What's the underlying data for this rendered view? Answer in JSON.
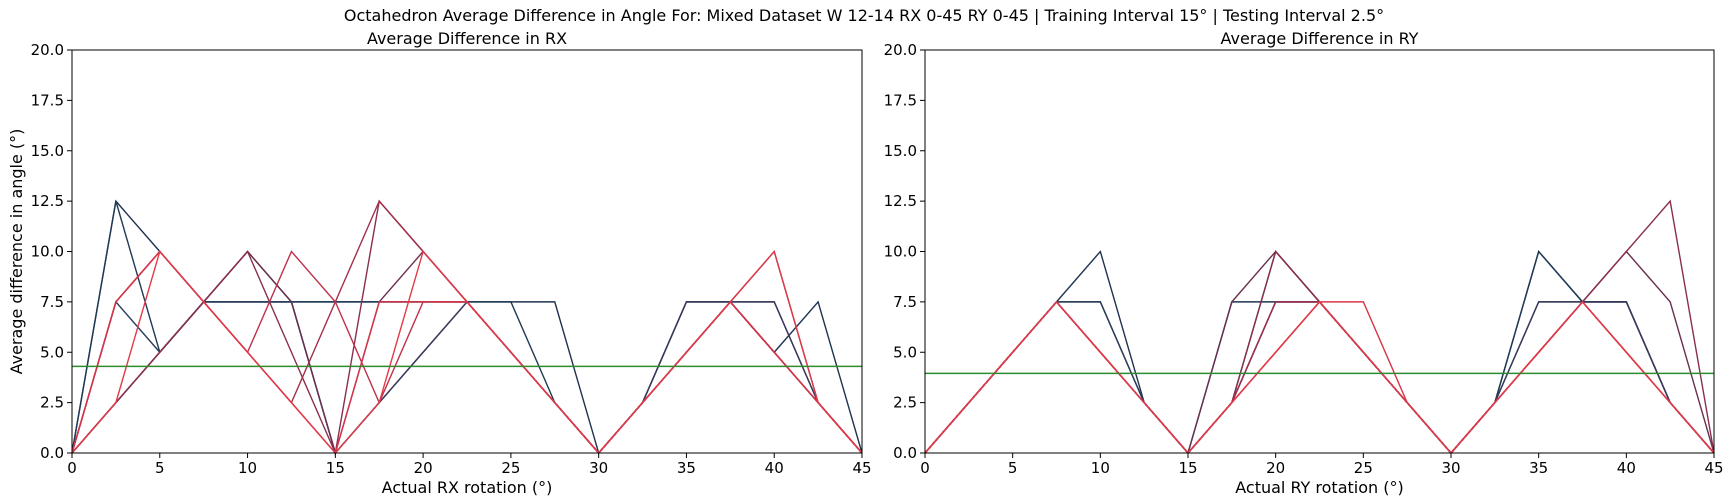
{
  "figure": {
    "suptitle": "Octahedron Average Difference in Angle For: Mixed Dataset W 12-14 RX 0-45 RY 0-45 | Training Interval 15° | Testing Interval 2.5°"
  },
  "chart_data": [
    {
      "type": "line",
      "title": "Average Difference in RX",
      "xlabel": "Actual RX rotation (°)",
      "ylabel": "Average difference in angle (°)",
      "xlim": [
        0,
        45
      ],
      "ylim": [
        0,
        20
      ],
      "xticks": [
        0,
        5,
        10,
        15,
        20,
        25,
        30,
        35,
        40,
        45
      ],
      "xtick_labels": [
        "0",
        "5",
        "10",
        "15",
        "20",
        "25",
        "30",
        "35",
        "40",
        "45"
      ],
      "yticks": [
        0,
        2.5,
        5,
        7.5,
        10,
        12.5,
        15,
        17.5,
        20
      ],
      "ytick_labels": [
        "0.0",
        "2.5",
        "5.0",
        "7.5",
        "10.0",
        "12.5",
        "15.0",
        "17.5",
        "20.0"
      ],
      "grid": false,
      "x": [
        0,
        2.5,
        5,
        7.5,
        10,
        12.5,
        15,
        17.5,
        20,
        22.5,
        25,
        27.5,
        30,
        32.5,
        35,
        37.5,
        40,
        42.5,
        45
      ],
      "mean_line": {
        "value": 4.3,
        "color": "#2e8b2e"
      },
      "series": [
        {
          "color": "#1e3350",
          "values": [
            0,
            12.5,
            10,
            7.5,
            7.5,
            7.5,
            7.5,
            7.5,
            7.5,
            7.5,
            7.5,
            7.5,
            0,
            2.5,
            7.5,
            7.5,
            5,
            7.5,
            0
          ]
        },
        {
          "color": "#1f3a55",
          "values": [
            0,
            12.5,
            5,
            7.5,
            7.5,
            7.5,
            7.5,
            7.5,
            7.5,
            7.5,
            7.5,
            2.5,
            0,
            2.5,
            7.5,
            7.5,
            7.5,
            2.5,
            0
          ]
        },
        {
          "color": "#2a3c5a",
          "values": [
            0,
            7.5,
            5,
            7.5,
            7.5,
            7.5,
            0,
            2.5,
            5,
            7.5,
            5,
            2.5,
            0,
            2.5,
            5,
            7.5,
            5,
            2.5,
            0
          ]
        },
        {
          "color": "#3a3a5c",
          "values": [
            0,
            2.5,
            5,
            7.5,
            10,
            7.5,
            0,
            2.5,
            5,
            7.5,
            5,
            2.5,
            0,
            2.5,
            7.5,
            7.5,
            7.5,
            2.5,
            0
          ]
        },
        {
          "color": "#6a3050",
          "values": [
            0,
            2.5,
            5,
            7.5,
            10,
            7.5,
            0,
            7.5,
            10,
            7.5,
            5,
            2.5,
            0,
            2.5,
            5,
            7.5,
            10,
            2.5,
            0
          ]
        },
        {
          "color": "#8a2f4e",
          "values": [
            0,
            2.5,
            5,
            7.5,
            10,
            5,
            0,
            12.5,
            10,
            7.5,
            5,
            2.5,
            0,
            2.5,
            5,
            7.5,
            5,
            2.5,
            0
          ]
        },
        {
          "color": "#a32e4a",
          "values": [
            0,
            7.5,
            10,
            7.5,
            5,
            2.5,
            7.5,
            12.5,
            10,
            7.5,
            5,
            2.5,
            0,
            2.5,
            5,
            7.5,
            5,
            2.5,
            0
          ]
        },
        {
          "color": "#c0304a",
          "values": [
            0,
            7.5,
            10,
            7.5,
            5,
            10,
            7.5,
            2.5,
            7.5,
            7.5,
            5,
            2.5,
            0,
            2.5,
            5,
            7.5,
            5,
            2.5,
            0
          ]
        },
        {
          "color": "#d83448",
          "values": [
            0,
            7.5,
            10,
            7.5,
            5,
            2.5,
            0,
            7.5,
            7.5,
            7.5,
            5,
            2.5,
            0,
            2.5,
            5,
            7.5,
            5,
            2.5,
            0
          ]
        },
        {
          "color": "#e23a48",
          "values": [
            0,
            2.5,
            10,
            7.5,
            5,
            2.5,
            0,
            2.5,
            10,
            7.5,
            5,
            2.5,
            0,
            2.5,
            5,
            7.5,
            10,
            2.5,
            0
          ]
        }
      ]
    },
    {
      "type": "line",
      "title": "Average Difference in RY",
      "xlabel": "Actual RY rotation (°)",
      "ylabel": "",
      "xlim": [
        0,
        45
      ],
      "ylim": [
        0,
        20
      ],
      "xticks": [
        0,
        5,
        10,
        15,
        20,
        25,
        30,
        35,
        40,
        45
      ],
      "xtick_labels": [
        "0",
        "5",
        "10",
        "15",
        "20",
        "25",
        "30",
        "35",
        "40",
        "45"
      ],
      "yticks": [
        0,
        2.5,
        5,
        7.5,
        10,
        12.5,
        15,
        17.5,
        20
      ],
      "ytick_labels": [
        "0.0",
        "2.5",
        "5.0",
        "7.5",
        "10.0",
        "12.5",
        "15.0",
        "17.5",
        "20.0"
      ],
      "grid": false,
      "x": [
        0,
        2.5,
        5,
        7.5,
        10,
        12.5,
        15,
        17.5,
        20,
        22.5,
        25,
        27.5,
        30,
        32.5,
        35,
        37.5,
        40,
        42.5,
        45
      ],
      "mean_line": {
        "value": 3.95,
        "color": "#2e8b2e"
      },
      "series": [
        {
          "color": "#1e3350",
          "values": [
            0,
            2.5,
            5,
            7.5,
            10,
            2.5,
            0,
            7.5,
            7.5,
            7.5,
            5,
            2.5,
            0,
            2.5,
            10,
            7.5,
            7.5,
            2.5,
            0
          ]
        },
        {
          "color": "#1f3a55",
          "values": [
            0,
            2.5,
            5,
            7.5,
            7.5,
            2.5,
            0,
            2.5,
            7.5,
            7.5,
            5,
            2.5,
            0,
            2.5,
            10,
            7.5,
            7.5,
            2.5,
            0
          ]
        },
        {
          "color": "#2a3c5a",
          "values": [
            0,
            2.5,
            5,
            7.5,
            7.5,
            2.5,
            0,
            2.5,
            10,
            7.5,
            5,
            2.5,
            0,
            2.5,
            7.5,
            7.5,
            7.5,
            2.5,
            0
          ]
        },
        {
          "color": "#3a3a5c",
          "values": [
            0,
            2.5,
            5,
            7.5,
            5,
            2.5,
            0,
            2.5,
            7.5,
            7.5,
            5,
            2.5,
            0,
            2.5,
            7.5,
            7.5,
            7.5,
            2.5,
            0
          ]
        },
        {
          "color": "#6a3050",
          "values": [
            0,
            2.5,
            5,
            7.5,
            5,
            2.5,
            0,
            7.5,
            10,
            7.5,
            5,
            2.5,
            0,
            2.5,
            5,
            7.5,
            10,
            7.5,
            0
          ]
        },
        {
          "color": "#8a2f4e",
          "values": [
            0,
            2.5,
            5,
            7.5,
            5,
            2.5,
            0,
            2.5,
            10,
            7.5,
            5,
            2.5,
            0,
            2.5,
            5,
            7.5,
            10,
            12.5,
            0
          ]
        },
        {
          "color": "#a32e4a",
          "values": [
            0,
            2.5,
            5,
            7.5,
            5,
            2.5,
            0,
            2.5,
            7.5,
            7.5,
            5,
            2.5,
            0,
            2.5,
            5,
            7.5,
            5,
            2.5,
            0
          ]
        },
        {
          "color": "#c0304a",
          "values": [
            0,
            2.5,
            5,
            7.5,
            5,
            2.5,
            0,
            2.5,
            5,
            7.5,
            5,
            2.5,
            0,
            2.5,
            5,
            7.5,
            5,
            2.5,
            0
          ]
        },
        {
          "color": "#d83448",
          "values": [
            0,
            2.5,
            5,
            7.5,
            5,
            2.5,
            0,
            2.5,
            5,
            7.5,
            7.5,
            2.5,
            0,
            2.5,
            5,
            7.5,
            5,
            2.5,
            0
          ]
        },
        {
          "color": "#e23a48",
          "values": [
            0,
            2.5,
            5,
            7.5,
            5,
            2.5,
            0,
            2.5,
            5,
            7.5,
            5,
            2.5,
            0,
            2.5,
            5,
            7.5,
            5,
            2.5,
            0
          ]
        }
      ]
    }
  ]
}
